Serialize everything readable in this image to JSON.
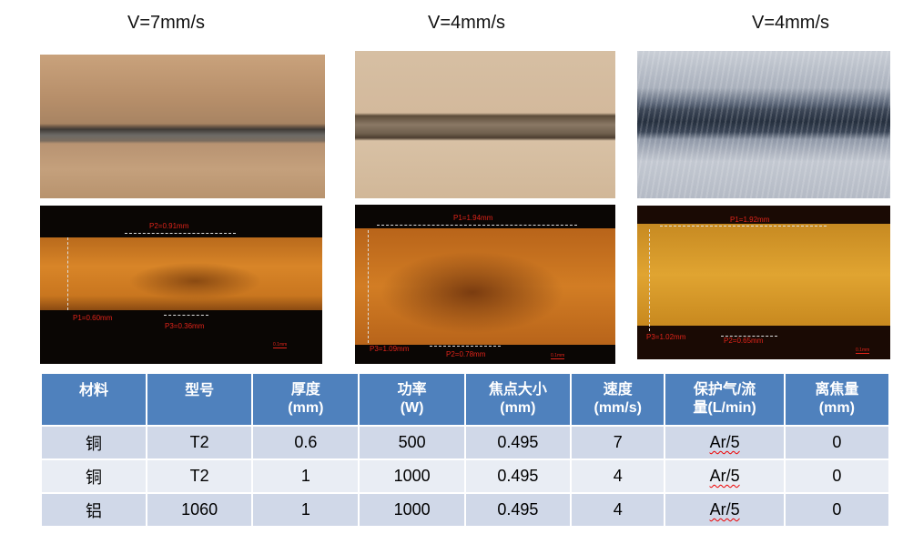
{
  "titles": [
    "V=7mm/s",
    "V=4mm/s",
    "V=4mm/s"
  ],
  "cross_sections": [
    {
      "labels": {
        "p1": "P1=0.60mm",
        "p2": "P2=0.91mm",
        "p3": "P3=0.36mm"
      },
      "scale": "0.1mm"
    },
    {
      "labels": {
        "p1": "P1=1.94mm",
        "p2": "P2=0.78mm",
        "p3": "P3=1.09mm"
      },
      "scale": "0.1mm"
    },
    {
      "labels": {
        "p1": "P1=1.92mm",
        "p2": "P2=0.65mm",
        "p3": "P3=1.02mm"
      },
      "scale": "0.1mm"
    }
  ],
  "table": {
    "headers": [
      {
        "line1": "材料",
        "line2": ""
      },
      {
        "line1": "型号",
        "line2": ""
      },
      {
        "line1": "厚度",
        "line2": "(mm)"
      },
      {
        "line1": "功率",
        "line2": "(W)"
      },
      {
        "line1": "焦点大小",
        "line2": "(mm)"
      },
      {
        "line1": "速度",
        "line2": "(mm/s)"
      },
      {
        "line1": "保护气/流",
        "line2": "量(L/min)"
      },
      {
        "line1": "离焦量",
        "line2": "(mm)"
      }
    ],
    "rows": [
      [
        "铜",
        "T2",
        "0.6",
        "500",
        "0.495",
        "7",
        "Ar/5",
        "0"
      ],
      [
        "铜",
        "T2",
        "1",
        "1000",
        "0.495",
        "4",
        "Ar/5",
        "0"
      ],
      [
        "铝",
        "1060",
        "1",
        "1000",
        "0.495",
        "4",
        "Ar/5",
        "0"
      ]
    ]
  }
}
